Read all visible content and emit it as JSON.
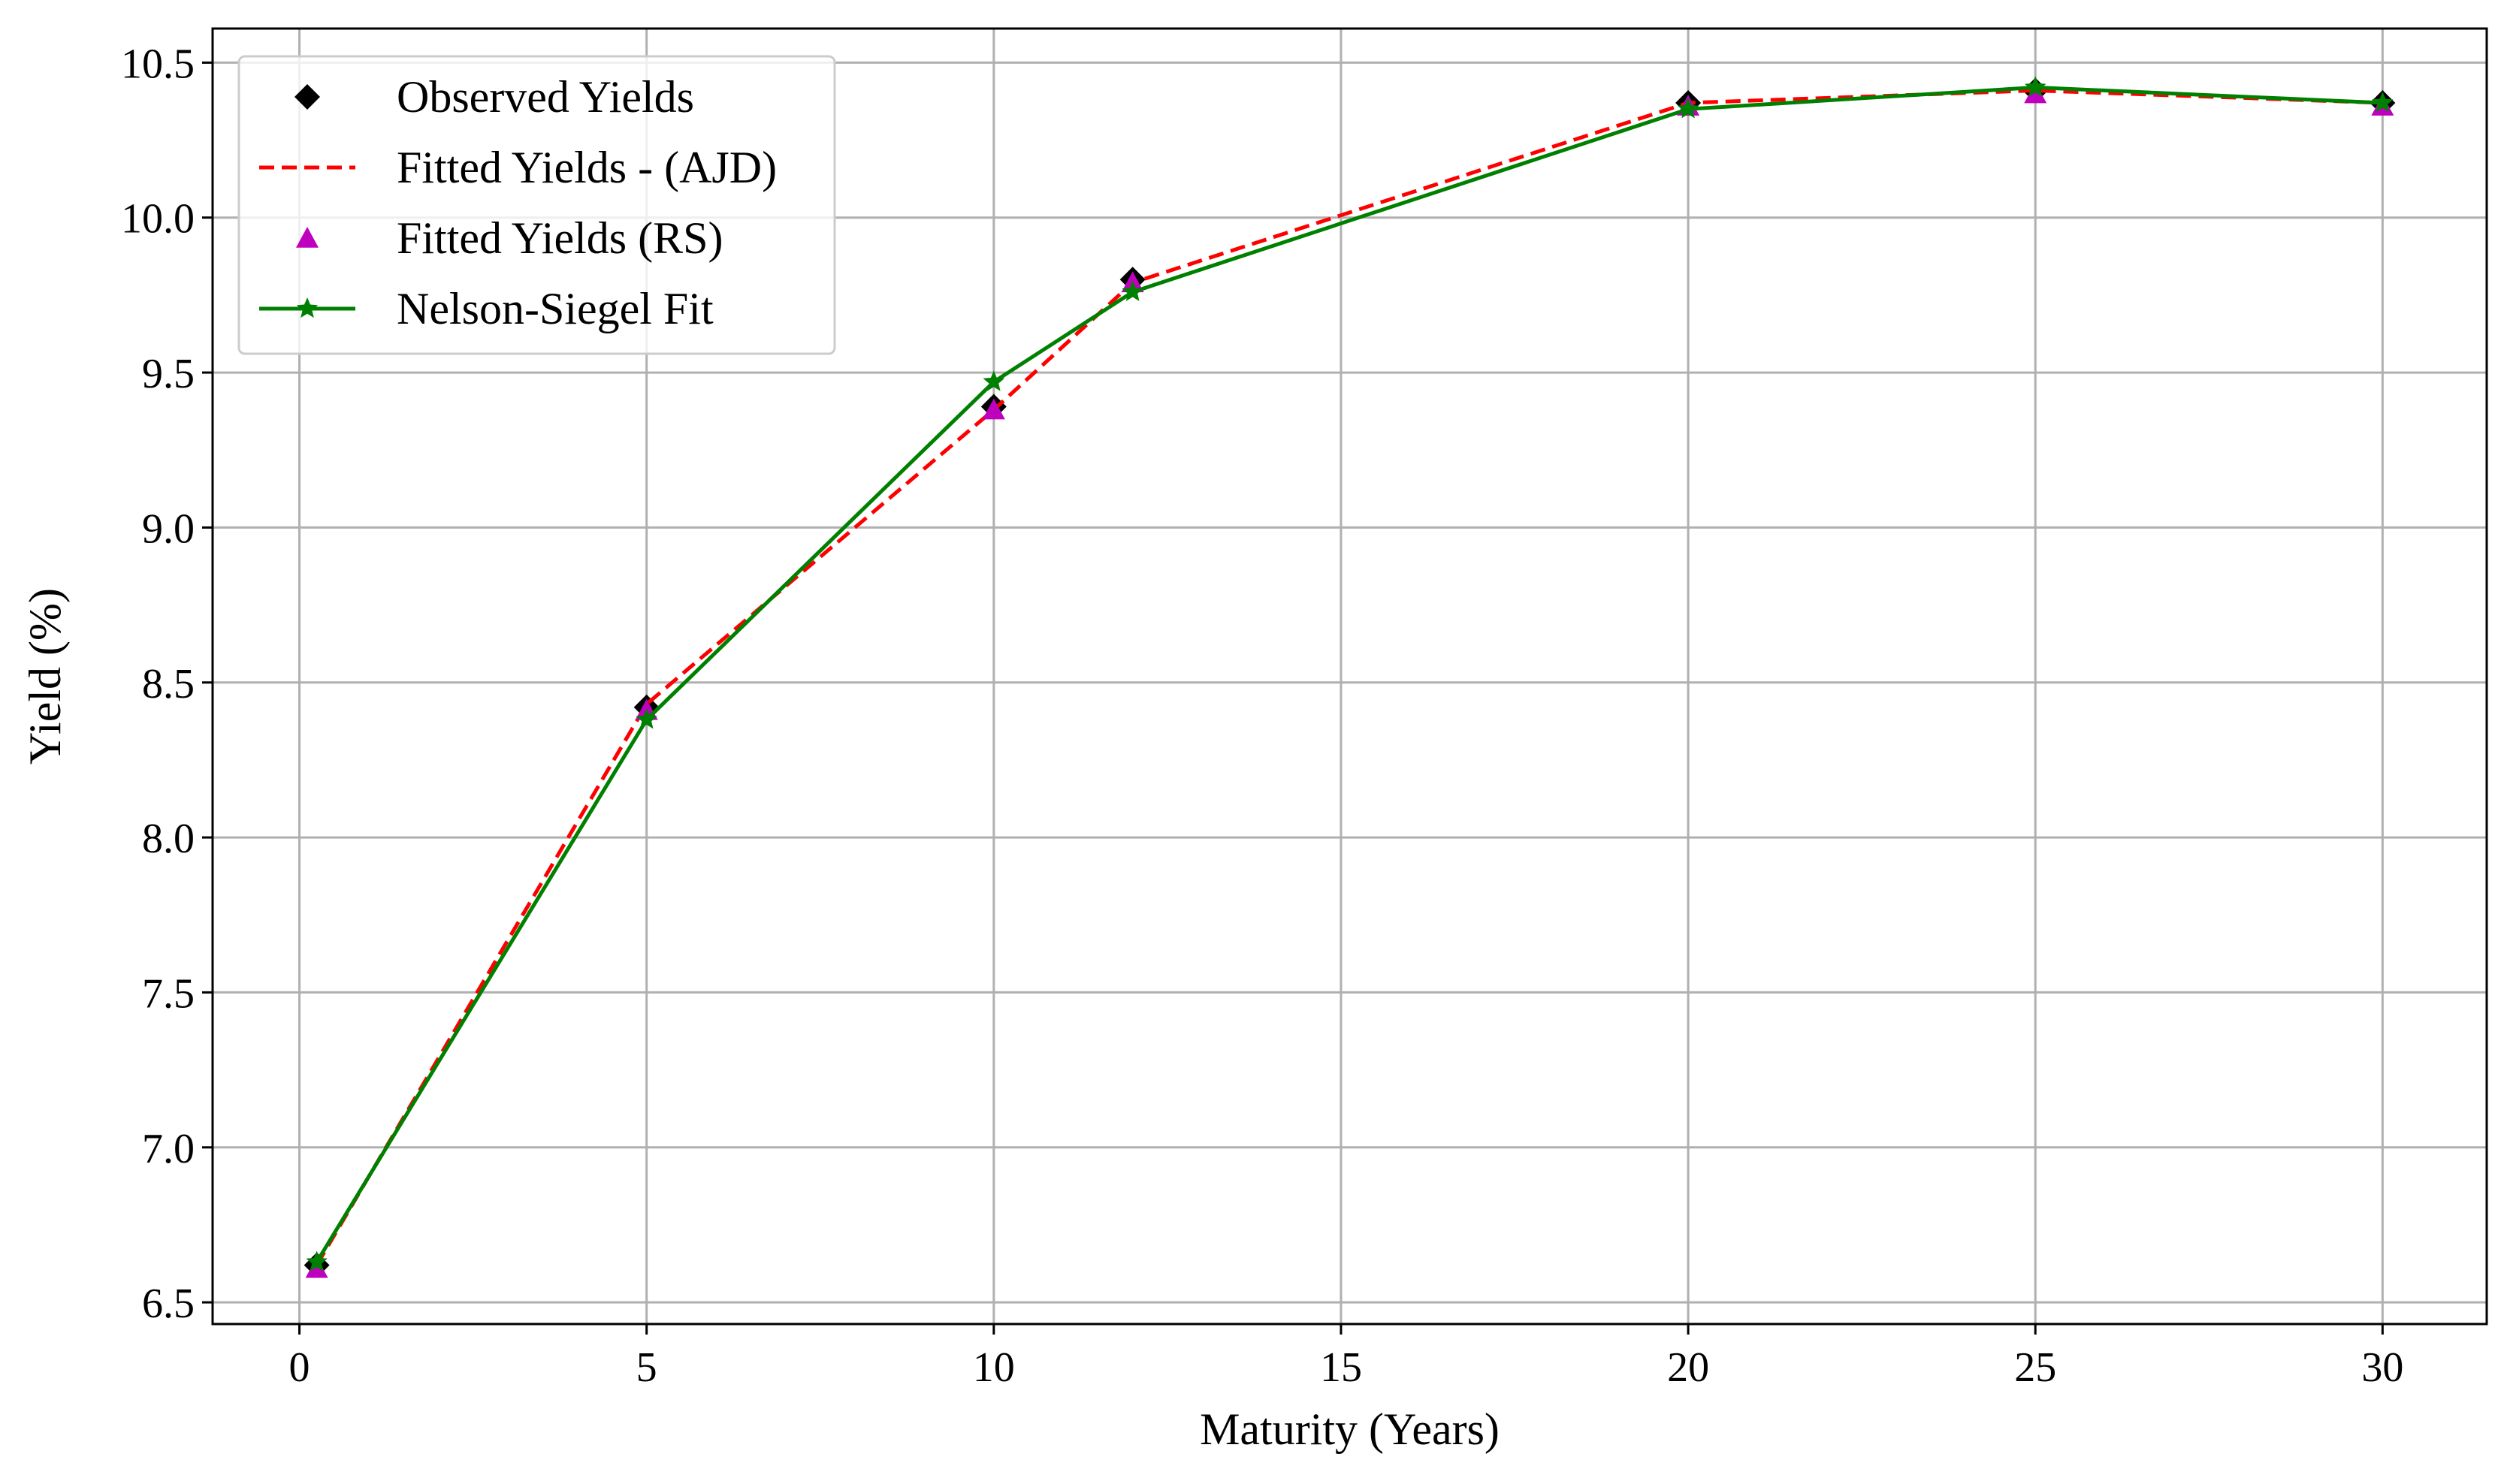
{
  "chart_data": {
    "type": "line",
    "title": "",
    "xlabel": "Maturity (Years)",
    "ylabel": "Yield (%)",
    "xlim": [
      -1.25,
      31.5
    ],
    "ylim": [
      6.43,
      10.61
    ],
    "xticks": [
      0,
      5,
      10,
      15,
      20,
      25,
      30
    ],
    "xtick_labels": [
      "0",
      "5",
      "10",
      "15",
      "20",
      "25",
      "30"
    ],
    "yticks": [
      6.5,
      7.0,
      7.5,
      8.0,
      8.5,
      9.0,
      9.5,
      10.0,
      10.5
    ],
    "ytick_labels": [
      "6.5",
      "7.0",
      "7.5",
      "8.0",
      "8.5",
      "9.0",
      "9.5",
      "10.0",
      "10.5"
    ],
    "grid": true,
    "legend_position": "top-left",
    "x": [
      0.25,
      5,
      10,
      12,
      20,
      25,
      30
    ],
    "series": [
      {
        "name": "Observed Yields",
        "style": "markers",
        "marker": "diamond",
        "color": "#000000",
        "values": [
          6.62,
          8.42,
          9.39,
          9.8,
          10.37,
          10.41,
          10.37
        ]
      },
      {
        "name": "Fitted Yields - (AJD)",
        "style": "dashed-line",
        "marker": "none",
        "color": "#ff0000",
        "values": [
          6.62,
          8.43,
          9.38,
          9.79,
          10.37,
          10.41,
          10.37
        ]
      },
      {
        "name": "Fitted Yields (RS)",
        "style": "markers",
        "marker": "triangle",
        "color": "#bf00bf",
        "values": [
          6.61,
          8.41,
          9.38,
          9.79,
          10.36,
          10.4,
          10.36
        ]
      },
      {
        "name": "Nelson-Siegel Fit",
        "style": "solid-line",
        "marker": "star",
        "color": "#008000",
        "values": [
          6.63,
          8.38,
          9.47,
          9.76,
          10.35,
          10.42,
          10.37
        ]
      }
    ]
  }
}
